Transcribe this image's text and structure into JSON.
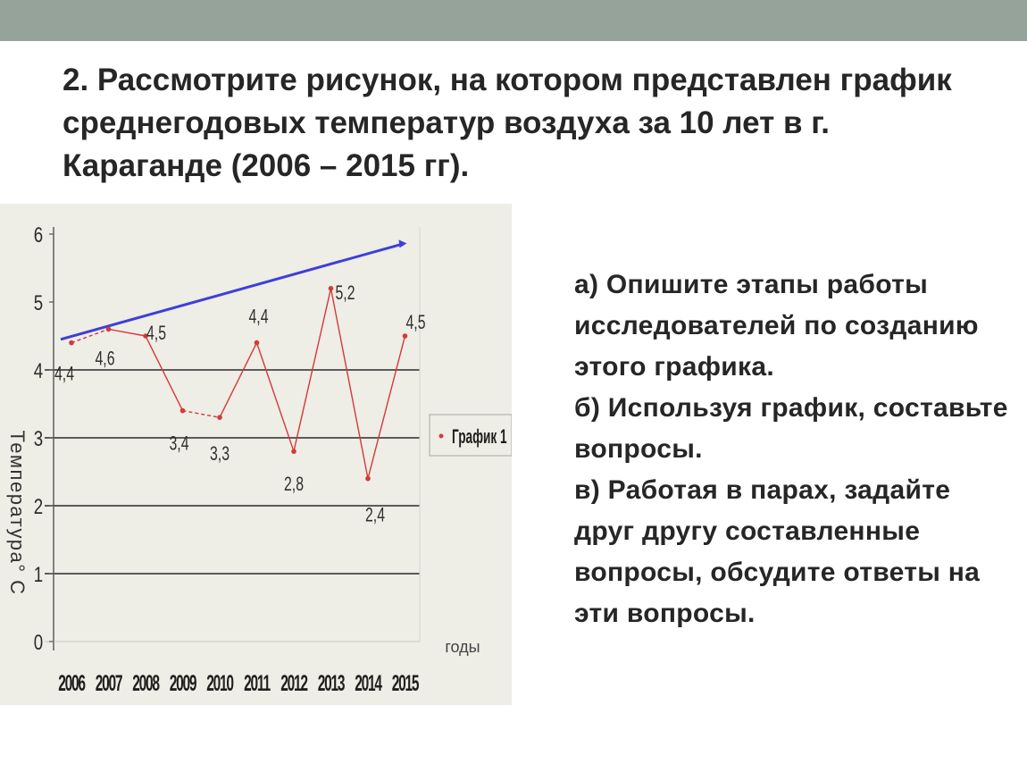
{
  "slide": {
    "title": "2. Рассмотрите рисунок, на котором представлен график среднегодовых температур воздуха за 10 лет в г. Караганде (2006 – 2015 гг).",
    "tasks": [
      "а) Опишите этапы работы исследователей по созданию этого графика.",
      "б) Используя график, составьте вопросы.",
      "в) Работая в парах, задайте друг другу составленные вопросы, обсудите ответы на эти вопросы."
    ]
  },
  "colors": {
    "top_bar": "#95a39a",
    "chart_background": "#eeede6",
    "series": "#d23a3a",
    "trend": "#3f3fd8",
    "text": "#262626"
  },
  "chart_data": {
    "type": "line",
    "x": [
      "2006",
      "2007",
      "2008",
      "2009",
      "2010",
      "2011",
      "2012",
      "2013",
      "2014",
      "2015"
    ],
    "series": [
      {
        "name": "График 1",
        "values": [
          4.4,
          4.6,
          4.5,
          3.4,
          3.3,
          4.4,
          2.8,
          5.2,
          2.4,
          4.5
        ],
        "labels": [
          "4,4",
          "4,6",
          "4,5",
          "3,4",
          "3,3",
          "4,4",
          "2,8",
          "5,2",
          "2,4",
          "4,5"
        ]
      }
    ],
    "trend_line": {
      "from": [
        "2006",
        4.45
      ],
      "to": [
        "2015",
        5.85
      ]
    },
    "y_ticks": [
      "0",
      "1",
      "2",
      "3",
      "4",
      "5",
      "6"
    ],
    "ylim": [
      0,
      6
    ],
    "ylabel": "Температура° С",
    "xlabel": "годы",
    "legend_position": "right",
    "gridlines": [
      1,
      2,
      3,
      4
    ]
  }
}
